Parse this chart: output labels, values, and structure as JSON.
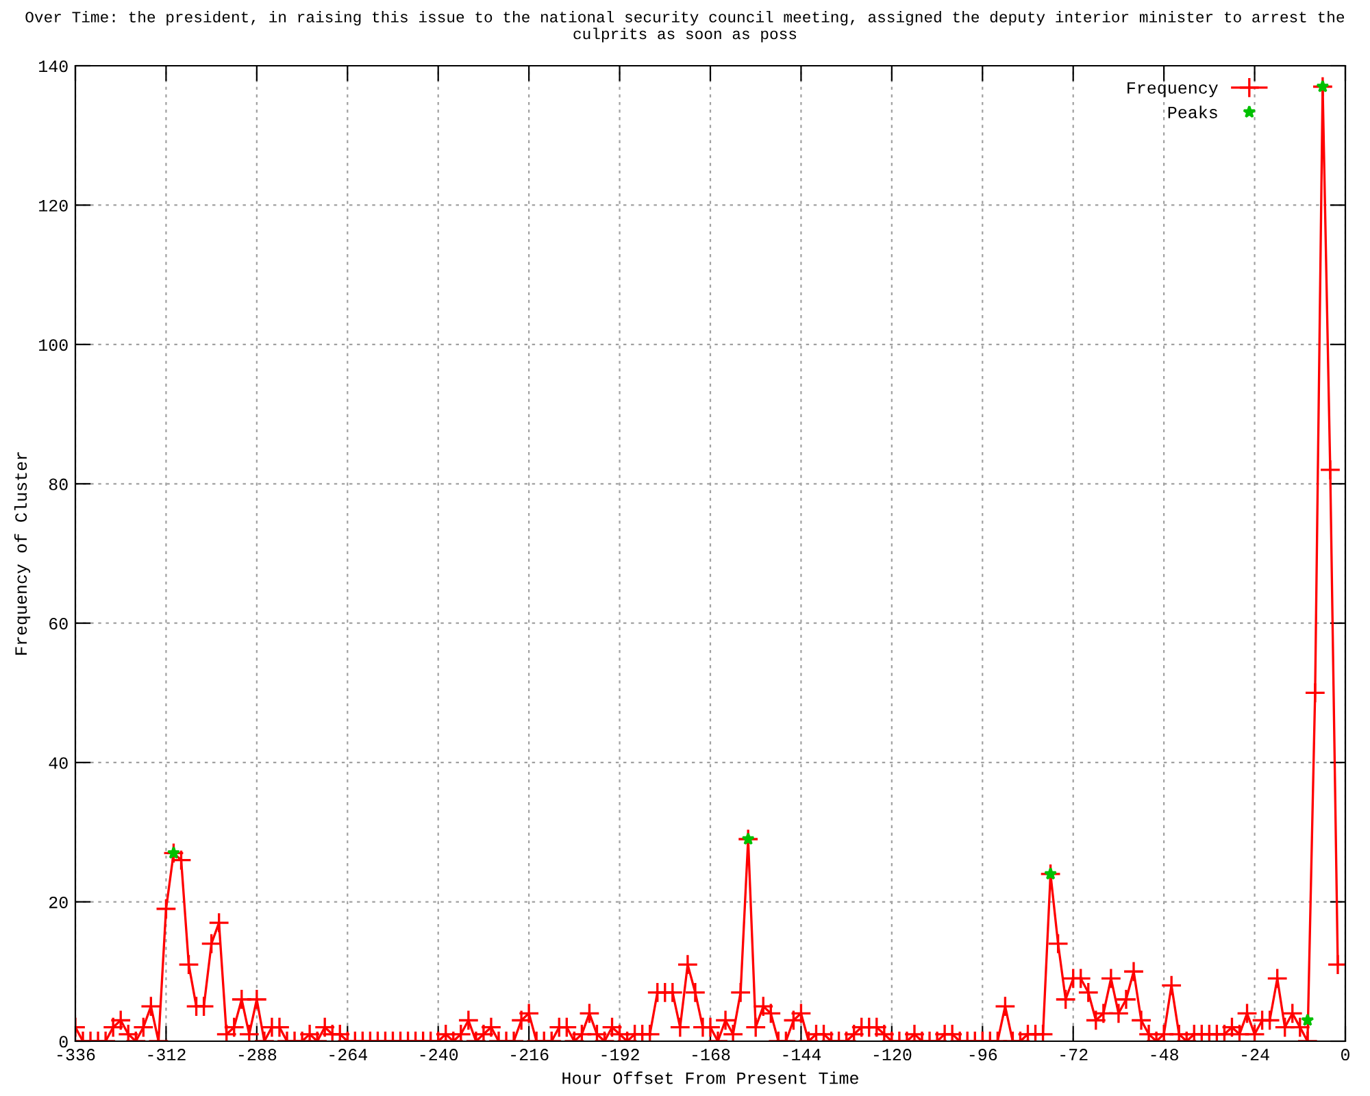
{
  "chart_data": {
    "type": "line",
    "title": "Over Time: the president, in raising this issue to the national security council meeting, assigned the deputy interior minister to arrest the culprits as soon as poss",
    "xlabel": "Hour Offset From Present Time",
    "ylabel": "Frequency of Cluster",
    "xlim": [
      -336,
      0
    ],
    "xticks": [
      -336,
      -312,
      -288,
      -264,
      -240,
      -216,
      -192,
      -168,
      -144,
      -120,
      -96,
      -72,
      -48,
      -24,
      0
    ],
    "ylim": [
      0,
      140
    ],
    "yticks": [
      0,
      20,
      40,
      60,
      80,
      100,
      120,
      140
    ],
    "grid": true,
    "legend": "top right",
    "series": [
      {
        "name": "Frequency",
        "color": "#ff0000",
        "marker": "cross",
        "line_style": "solid",
        "x": [
          -336,
          -334,
          -332,
          -330,
          -328,
          -326,
          -324,
          -322,
          -320,
          -318,
          -316,
          -314,
          -312,
          -310,
          -308,
          -306,
          -304,
          -302,
          -300,
          -298,
          -296,
          -294,
          -292,
          -290,
          -288,
          -286,
          -284,
          -282,
          -280,
          -278,
          -276,
          -274,
          -272,
          -270,
          -268,
          -266,
          -264,
          -262,
          -260,
          -258,
          -256,
          -254,
          -252,
          -250,
          -248,
          -246,
          -244,
          -242,
          -240,
          -238,
          -236,
          -234,
          -232,
          -230,
          -228,
          -226,
          -224,
          -222,
          -220,
          -218,
          -216,
          -214,
          -212,
          -210,
          -208,
          -206,
          -204,
          -202,
          -200,
          -198,
          -196,
          -194,
          -192,
          -190,
          -188,
          -186,
          -184,
          -182,
          -180,
          -178,
          -176,
          -174,
          -172,
          -170,
          -168,
          -166,
          -164,
          -162,
          -160,
          -158,
          -156,
          -154,
          -152,
          -150,
          -148,
          -146,
          -144,
          -142,
          -140,
          -138,
          -136,
          -134,
          -132,
          -130,
          -128,
          -126,
          -124,
          -122,
          -120,
          -118,
          -116,
          -114,
          -112,
          -110,
          -108,
          -106,
          -104,
          -102,
          -100,
          -98,
          -96,
          -94,
          -92,
          -90,
          -88,
          -86,
          -84,
          -82,
          -80,
          -78,
          -76,
          -74,
          -72,
          -70,
          -68,
          -66,
          -64,
          -62,
          -60,
          -58,
          -56,
          -54,
          -52,
          -50,
          -48,
          -46,
          -44,
          -42,
          -40,
          -38,
          -36,
          -34,
          -32,
          -30,
          -28,
          -26,
          -24,
          -22,
          -20,
          -18,
          -16,
          -14,
          -12,
          -10,
          -8,
          -6,
          -4,
          -2
        ],
        "values": [
          2,
          0,
          0,
          0,
          0,
          2,
          3,
          1,
          0,
          2,
          5,
          0,
          19,
          27,
          26,
          11,
          5,
          5,
          14,
          17,
          1,
          2,
          6,
          1,
          6,
          0,
          2,
          2,
          0,
          0,
          0,
          1,
          0,
          2,
          1,
          1,
          0,
          0,
          0,
          0,
          0,
          0,
          0,
          0,
          0,
          0,
          0,
          0,
          0,
          1,
          0,
          1,
          3,
          0,
          1,
          2,
          0,
          0,
          0,
          3,
          4,
          0,
          0,
          0,
          2,
          2,
          0,
          1,
          4,
          1,
          0,
          2,
          1,
          0,
          1,
          1,
          1,
          7,
          7,
          7,
          2,
          11,
          7,
          2,
          2,
          0,
          3,
          1,
          7,
          29,
          2,
          5,
          4,
          0,
          0,
          3,
          4,
          0,
          1,
          1,
          0,
          0,
          0,
          1,
          2,
          2,
          2,
          1,
          0,
          0,
          0,
          1,
          0,
          0,
          0,
          1,
          1,
          0,
          0,
          0,
          0,
          0,
          0,
          5,
          0,
          0,
          1,
          1,
          1,
          24,
          14,
          6,
          9,
          9,
          7,
          3,
          4,
          9,
          4,
          6,
          10,
          3,
          1,
          0,
          1,
          8,
          1,
          0,
          1,
          1,
          1,
          1,
          1,
          2,
          1,
          4,
          1,
          3,
          3,
          9,
          2,
          4,
          2,
          0,
          50,
          137,
          82,
          11
        ]
      },
      {
        "name": "Peaks",
        "color": "#00c000",
        "type": "scatter",
        "marker": "star",
        "x": [
          -310,
          -158,
          -78,
          -10,
          -6
        ],
        "values": [
          27,
          29,
          24,
          3,
          137
        ]
      }
    ]
  }
}
